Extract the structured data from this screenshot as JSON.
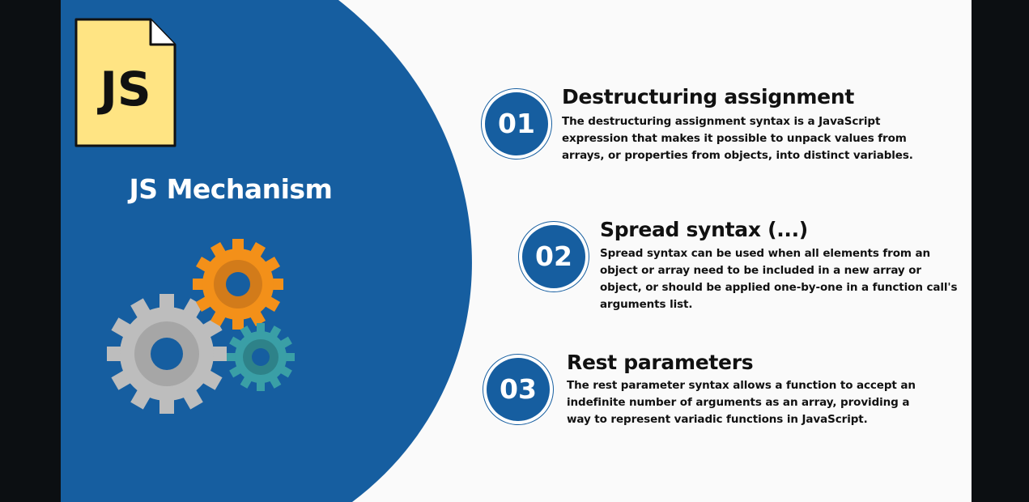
{
  "header": {
    "file_icon_text": "JS",
    "title": "JS Mechanism"
  },
  "colors": {
    "primary_blue": "#165ea0",
    "file_yellow": "#ffe483",
    "gear_orange": "#f39019",
    "gear_gray": "#bdbdbd",
    "gear_teal": "#3a9fa6"
  },
  "icons": [
    "js-file-icon",
    "gears-icon"
  ],
  "steps": [
    {
      "number": "01",
      "title": "Destructuring assignment",
      "description": "The destructuring assignment syntax is a JavaScript expression that makes it possible to unpack values from arrays, or properties from objects, into distinct variables."
    },
    {
      "number": "02",
      "title": "Spread syntax (...)",
      "description": "Spread syntax can be used when all elements from an object or array need to be included in a new array or object, or should be applied one-by-one in a function call's arguments list."
    },
    {
      "number": "03",
      "title": "Rest parameters",
      "description": "The rest parameter syntax allows a function to accept an indefinite number of arguments as an array, providing a way to represent variadic functions in JavaScript."
    }
  ]
}
